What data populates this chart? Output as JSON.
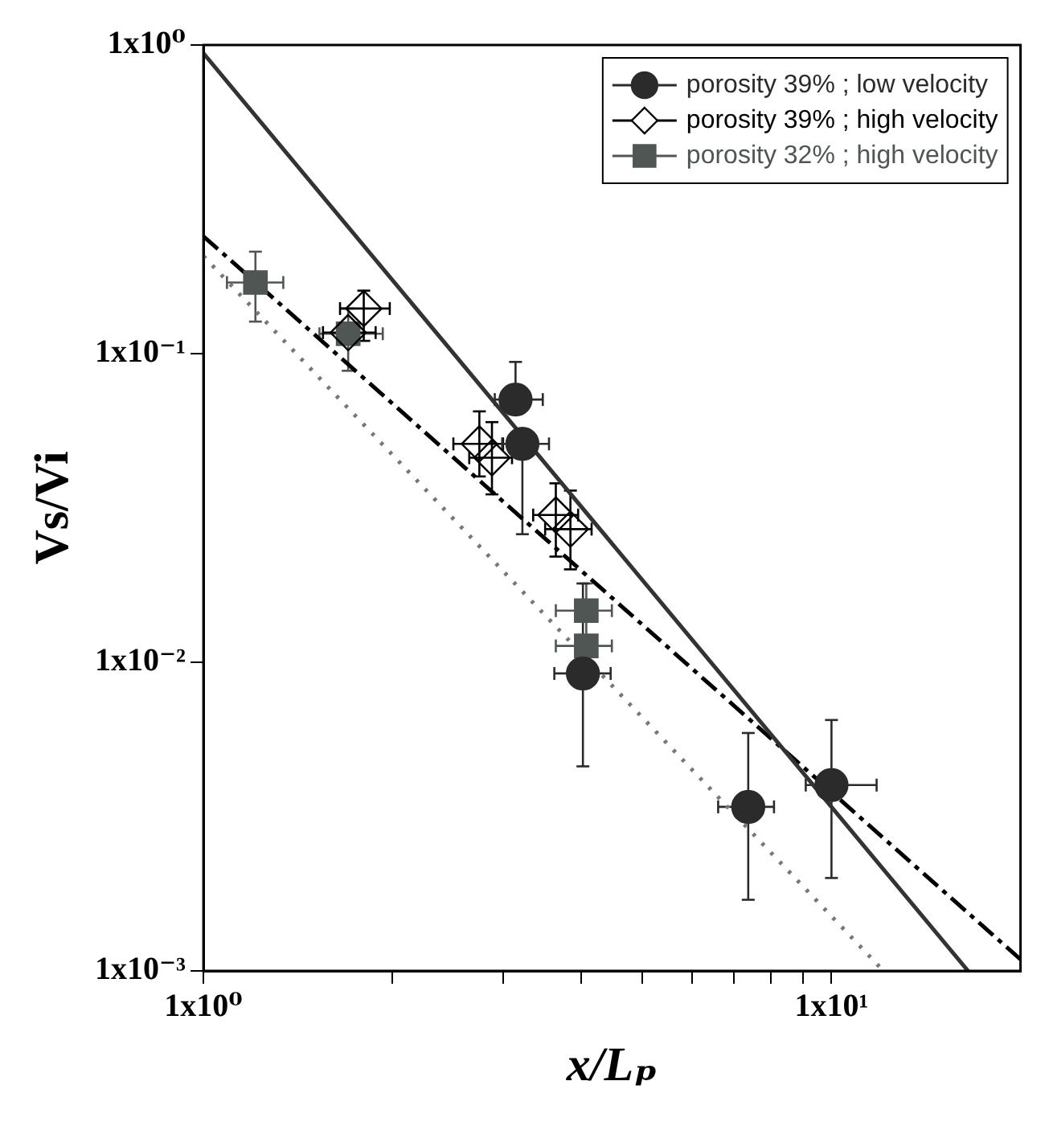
{
  "chart_data": {
    "type": "scatter",
    "xlabel": "x/Lₚ",
    "ylabel": "Vs/Vi",
    "log": "xy",
    "grid": false,
    "legend": "top right",
    "xlim": [
      1,
      20
    ],
    "ylim": [
      0.001,
      1
    ],
    "xticks": [
      {
        "value": 1,
        "label": "1x10⁰"
      },
      {
        "value": 2,
        "label": null
      },
      {
        "value": 3,
        "label": null
      },
      {
        "value": 4,
        "label": null
      },
      {
        "value": 5,
        "label": null
      },
      {
        "value": 6,
        "label": null
      },
      {
        "value": 7,
        "label": null
      },
      {
        "value": 8,
        "label": null
      },
      {
        "value": 9,
        "label": null
      },
      {
        "value": 10,
        "label": "1x10¹"
      }
    ],
    "yticks": [
      {
        "value": 0.001,
        "label": "1x10⁻³"
      },
      {
        "value": 0.01,
        "label": "1x10⁻²"
      },
      {
        "value": 0.1,
        "label": "1x10⁻¹"
      },
      {
        "value": 1,
        "label": "1x10⁰"
      }
    ],
    "series": [
      {
        "name": "porosity 39% ; low velocity",
        "type": "scatter",
        "marker": "circle",
        "color": "#2b2b2b",
        "x": [
          3.14,
          3.22,
          4.02,
          7.37,
          10
        ],
        "values": [
          0.071,
          0.051,
          0.0092,
          0.0034,
          0.004
        ],
        "errors": [
          [
            0.071,
            0.094
          ],
          [
            0.026,
            0.051
          ],
          [
            0.0046,
            0.018
          ],
          [
            0.0017,
            0.0059
          ],
          [
            0.002,
            0.0065
          ]
        ],
        "xerrors": [
          [
            2.91,
            3.47
          ],
          [
            2.99,
            3.55
          ],
          [
            3.62,
            4.45
          ],
          [
            6.6,
            8.1
          ],
          [
            9.1,
            11.8
          ]
        ]
      },
      {
        "name": "porosity 39% ; high velocity",
        "type": "scatter",
        "marker": "diamond",
        "color": "#000000",
        "x": [
          1.7,
          1.8,
          2.75,
          2.88,
          3.64,
          3.84
        ],
        "values": [
          0.117,
          0.14,
          0.051,
          0.046,
          0.03,
          0.027
        ],
        "errors": [
          null,
          [
            0.11,
            0.16
          ],
          [
            0.04,
            0.065
          ],
          [
            0.035,
            0.06
          ],
          [
            0.022,
            0.038
          ],
          [
            0.02,
            0.036
          ]
        ],
        "xerrors": [
          [
            1.55,
            1.88
          ],
          [
            1.65,
            1.98
          ],
          [
            2.5,
            3.0
          ],
          [
            2.65,
            3.1
          ],
          [
            3.35,
            3.95
          ],
          [
            3.5,
            4.15
          ]
        ]
      },
      {
        "name": "porosity 32% ; high velocity",
        "type": "scatter",
        "marker": "square",
        "color": "#4f5653",
        "x": [
          1.21,
          1.7,
          4.07,
          4.07
        ],
        "values": [
          0.17,
          0.116,
          0.0147,
          0.0113
        ],
        "errors": [
          [
            0.127,
            0.214
          ],
          [
            0.088,
            0.14
          ],
          [
            0.012,
            0.018
          ],
          null
        ],
        "xerrors": [
          [
            1.09,
            1.34
          ],
          [
            1.53,
            1.93
          ],
          [
            3.64,
            4.47
          ],
          [
            3.64,
            4.47
          ]
        ]
      },
      {
        "type": "line",
        "line_style": "solid",
        "marker": "none",
        "color": "#333333",
        "x": [
          1,
          16.5
        ],
        "values": [
          0.94,
          0.001
        ]
      },
      {
        "type": "line",
        "line_style": "dashed",
        "marker": "none",
        "color": "#000000",
        "x": [
          1,
          20
        ],
        "values": [
          0.24,
          0.00109
        ]
      },
      {
        "type": "line",
        "line_style": "dotted",
        "marker": "none",
        "color": "#777777",
        "x": [
          1,
          12.1
        ],
        "values": [
          0.207,
          0.001
        ]
      }
    ]
  }
}
